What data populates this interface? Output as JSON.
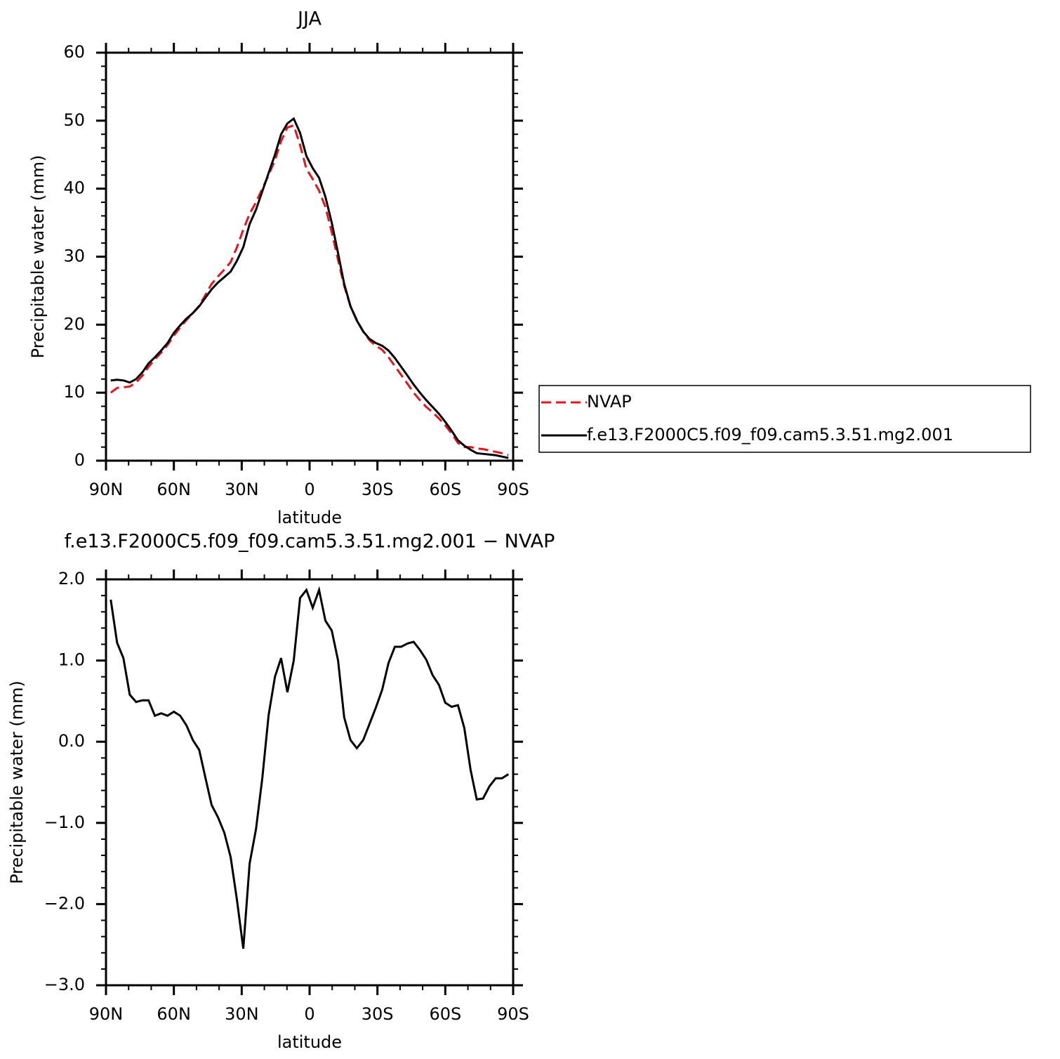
{
  "chart_data": [
    {
      "type": "line",
      "title": "JJA",
      "xlabel": "latitude",
      "ylabel": "Precipitable water (mm)",
      "x": [
        87.9,
        85.1,
        82.3,
        79.5,
        76.7,
        73.9,
        71.2,
        68.4,
        65.6,
        62.8,
        60.0,
        57.2,
        54.4,
        51.6,
        48.8,
        46.0,
        43.3,
        40.5,
        37.7,
        34.9,
        32.1,
        29.3,
        26.5,
        23.7,
        20.9,
        18.1,
        15.3,
        12.6,
        9.8,
        7.0,
        4.2,
        1.4,
        -1.4,
        -4.2,
        -7.0,
        -9.8,
        -12.6,
        -15.3,
        -18.1,
        -20.9,
        -23.7,
        -26.5,
        -29.3,
        -32.1,
        -34.9,
        -37.7,
        -40.5,
        -43.3,
        -46.0,
        -48.8,
        -51.6,
        -54.4,
        -57.2,
        -60.0,
        -62.8,
        -65.6,
        -68.4,
        -71.2,
        -73.9,
        -76.7,
        -79.5,
        -82.3,
        -85.1,
        -87.9
      ],
      "xlim": [
        90,
        -90
      ],
      "xticks": [
        {
          "value": 90,
          "label": "90N"
        },
        {
          "value": 60,
          "label": "60N"
        },
        {
          "value": 30,
          "label": "30N"
        },
        0,
        {
          "value": -30,
          "label": "30S"
        },
        {
          "value": -60,
          "label": "60S"
        },
        {
          "value": -90,
          "label": "90S"
        }
      ],
      "ylim": [
        0,
        60
      ],
      "yticks": [
        0,
        10,
        20,
        30,
        40,
        50,
        60
      ],
      "legend_position": "outside-right",
      "series": [
        {
          "name": "NVAP",
          "color": "#e8141c",
          "line_style": "dashed",
          "values": [
            10.0,
            10.7,
            10.8,
            10.9,
            11.5,
            12.5,
            13.8,
            14.9,
            15.9,
            17.0,
            18.4,
            19.6,
            20.7,
            21.7,
            22.8,
            24.4,
            26.0,
            27.1,
            28.1,
            29.2,
            31.4,
            34.0,
            36.3,
            38.0,
            40.0,
            42.0,
            44.2,
            47.0,
            49.0,
            49.3,
            46.4,
            42.9,
            41.4,
            39.7,
            37.3,
            33.6,
            29.5,
            25.7,
            22.7,
            20.7,
            19.0,
            17.7,
            16.9,
            16.3,
            15.2,
            13.9,
            12.6,
            11.3,
            10.0,
            8.9,
            7.9,
            7.1,
            6.2,
            5.2,
            4.0,
            2.6,
            2.0,
            2.0,
            1.8,
            1.7,
            1.5,
            1.3,
            1.1,
            0.8
          ]
        },
        {
          "name": "f.e13.F2000C5.f09_f09.cam5.3.51.mg2.001",
          "color": "#000000",
          "line_style": "solid",
          "values": [
            11.8,
            11.9,
            11.8,
            11.5,
            12.0,
            13.0,
            14.3,
            15.2,
            16.2,
            17.3,
            18.8,
            19.9,
            20.9,
            21.7,
            22.7,
            24.0,
            25.2,
            26.2,
            27.0,
            27.8,
            29.4,
            31.4,
            34.8,
            36.9,
            39.6,
            42.3,
            45.0,
            48.0,
            49.6,
            50.3,
            48.2,
            44.8,
            43.0,
            41.6,
            38.8,
            35.0,
            30.5,
            26.0,
            22.7,
            20.6,
            19.0,
            17.9,
            17.3,
            16.9,
            16.2,
            15.1,
            13.8,
            12.5,
            11.2,
            10.0,
            8.9,
            7.9,
            6.9,
            5.7,
            4.4,
            3.0,
            2.2,
            1.6,
            1.1,
            1.0,
            0.9,
            0.8,
            0.6,
            0.4
          ]
        }
      ]
    },
    {
      "type": "line",
      "title": "f.e13.F2000C5.f09_f09.cam5.3.51.mg2.001  −  NVAP",
      "xlabel": "latitude",
      "ylabel": "Precipitable water (mm)",
      "x": [
        87.9,
        85.1,
        82.3,
        79.5,
        76.7,
        73.9,
        71.2,
        68.4,
        65.6,
        62.8,
        60.0,
        57.2,
        54.4,
        51.6,
        48.8,
        46.0,
        43.3,
        40.5,
        37.7,
        34.9,
        32.1,
        29.3,
        26.5,
        23.7,
        20.9,
        18.1,
        15.3,
        12.6,
        9.8,
        7.0,
        4.2,
        1.4,
        -1.4,
        -4.2,
        -7.0,
        -9.8,
        -12.6,
        -15.3,
        -18.1,
        -20.9,
        -23.7,
        -26.5,
        -29.3,
        -32.1,
        -34.9,
        -37.7,
        -40.5,
        -43.3,
        -46.0,
        -48.8,
        -51.6,
        -54.4,
        -57.2,
        -60.0,
        -62.8,
        -65.6,
        -68.4,
        -71.2,
        -73.9,
        -76.7,
        -79.5,
        -82.3,
        -85.1,
        -87.9
      ],
      "xlim": [
        90,
        -90
      ],
      "xticks": [
        {
          "value": 90,
          "label": "90N"
        },
        {
          "value": 60,
          "label": "60N"
        },
        {
          "value": 30,
          "label": "30N"
        },
        0,
        {
          "value": -30,
          "label": "30S"
        },
        {
          "value": -60,
          "label": "60S"
        },
        {
          "value": -90,
          "label": "90S"
        }
      ],
      "ylim": [
        -3,
        2
      ],
      "yticks": [
        {
          "value": -3,
          "label": "−3.0"
        },
        {
          "value": -2,
          "label": "−2.0"
        },
        {
          "value": -1,
          "label": "−1.0"
        },
        {
          "value": 0,
          "label": "0.0"
        },
        {
          "value": 1,
          "label": "1.0"
        },
        {
          "value": 2,
          "label": "2.0"
        }
      ],
      "series": [
        {
          "color": "#000000",
          "line_style": "solid",
          "values": [
            1.75,
            1.22,
            1.03,
            0.58,
            0.49,
            0.51,
            0.51,
            0.32,
            0.35,
            0.32,
            0.37,
            0.32,
            0.2,
            0.02,
            -0.1,
            -0.45,
            -0.78,
            -0.93,
            -1.12,
            -1.42,
            -1.95,
            -2.55,
            -1.5,
            -1.08,
            -0.45,
            0.33,
            0.8,
            1.03,
            0.61,
            1.0,
            1.77,
            1.87,
            1.65,
            1.87,
            1.49,
            1.37,
            1.0,
            0.3,
            0.02,
            -0.08,
            0.02,
            0.22,
            0.42,
            0.64,
            0.97,
            1.17,
            1.17,
            1.21,
            1.23,
            1.13,
            1.01,
            0.82,
            0.7,
            0.48,
            0.43,
            0.45,
            0.17,
            -0.35,
            -0.71,
            -0.7,
            -0.55,
            -0.45,
            -0.45,
            -0.4
          ]
        }
      ]
    }
  ]
}
